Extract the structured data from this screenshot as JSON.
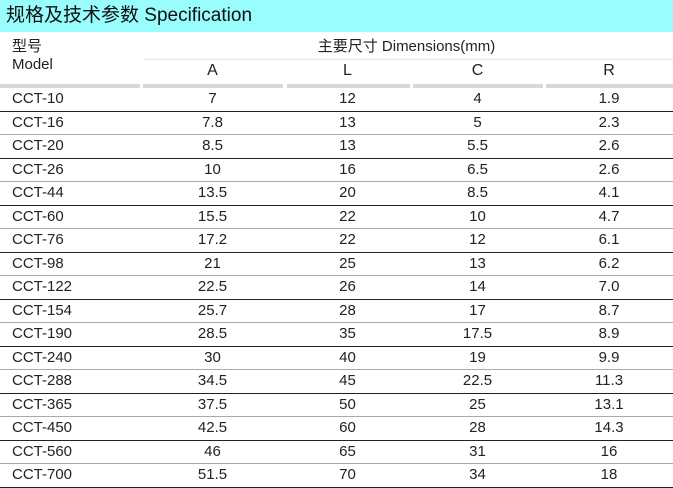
{
  "title": "规格及技术参数  Specification",
  "header": {
    "model_cn": "型号",
    "model_en": "Model",
    "dimensions": "主要尺寸  Dimensions(mm)",
    "columns": [
      "A",
      "L",
      "C",
      "R"
    ]
  },
  "rows": [
    [
      "CCT-10",
      "7",
      "12",
      "4",
      "1.9"
    ],
    [
      "CCT-16",
      "7.8",
      "13",
      "5",
      "2.3"
    ],
    [
      "CCT-20",
      "8.5",
      "13",
      "5.5",
      "2.6"
    ],
    [
      "CCT-26",
      "10",
      "16",
      "6.5",
      "2.6"
    ],
    [
      "CCT-44",
      "13.5",
      "20",
      "8.5",
      "4.1"
    ],
    [
      "CCT-60",
      "15.5",
      "22",
      "10",
      "4.7"
    ],
    [
      "CCT-76",
      "17.2",
      "22",
      "12",
      "6.1"
    ],
    [
      "CCT-98",
      "21",
      "25",
      "13",
      "6.2"
    ],
    [
      "CCT-122",
      "22.5",
      "26",
      "14",
      "7.0"
    ],
    [
      "CCT-154",
      "25.7",
      "28",
      "17",
      "8.7"
    ],
    [
      "CCT-190",
      "28.5",
      "35",
      "17.5",
      "8.9"
    ],
    [
      "CCT-240",
      "30",
      "40",
      "19",
      "9.9"
    ],
    [
      "CCT-288",
      "34.5",
      "45",
      "22.5",
      "11.3"
    ],
    [
      "CCT-365",
      "37.5",
      "50",
      "25",
      "13.1"
    ],
    [
      "CCT-450",
      "42.5",
      "60",
      "28",
      "14.3"
    ],
    [
      "CCT-560",
      "46",
      "65",
      "31",
      "16"
    ],
    [
      "CCT-700",
      "51.5",
      "70",
      "34",
      "18"
    ]
  ]
}
